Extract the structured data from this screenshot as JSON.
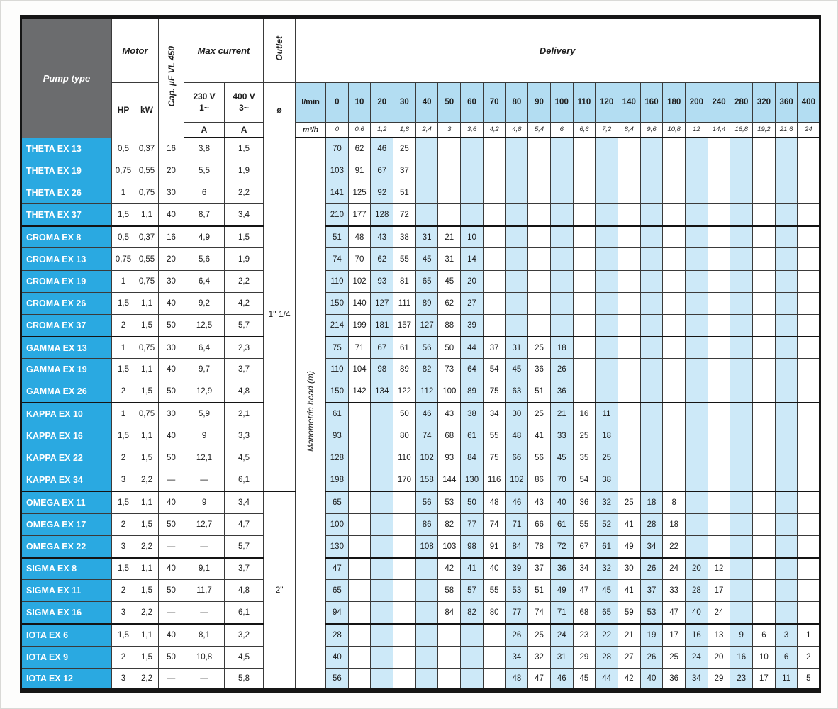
{
  "header": {
    "pump_type": "Pump type",
    "motor": "Motor",
    "hp": "HP",
    "kw": "kW",
    "cap": "Cap. µF VL 450",
    "max_current": "Max current",
    "v230": "230 V\n1~",
    "v400": "400 V\n3~",
    "amp": "A",
    "outlet": "Outlet",
    "diameter": "ø",
    "delivery": "Delivery",
    "lmin": "l/min",
    "m3h": "m³/h",
    "manometric": "Manometric head (m)",
    "lmin_values": [
      "0",
      "10",
      "20",
      "30",
      "40",
      "50",
      "60",
      "70",
      "80",
      "90",
      "100",
      "110",
      "120",
      "140",
      "160",
      "180",
      "200",
      "240",
      "280",
      "320",
      "360",
      "400"
    ],
    "m3h_values": [
      "0",
      "0,6",
      "1,2",
      "1,8",
      "2,4",
      "3",
      "3,6",
      "4,2",
      "4,8",
      "5,4",
      "6",
      "6,6",
      "7,2",
      "8,4",
      "9,6",
      "10,8",
      "12",
      "14,4",
      "16,8",
      "19,2",
      "21,6",
      "24"
    ]
  },
  "outlet_groups": [
    {
      "label": "1\" 1/4",
      "start": 0,
      "span": 16
    },
    {
      "label": "2\"",
      "start": 16,
      "span": 9
    }
  ],
  "rows": [
    {
      "name": "THETA EX 13",
      "hp": "0,5",
      "kw": "0,37",
      "cap": "16",
      "a230": "3,8",
      "a400": "1,5",
      "delivery": [
        "70",
        "62",
        "46",
        "25",
        "",
        "",
        "",
        "",
        "",
        "",
        "",
        "",
        "",
        "",
        "",
        "",
        "",
        "",
        "",
        "",
        "",
        ""
      ]
    },
    {
      "name": "THETA EX 19",
      "hp": "0,75",
      "kw": "0,55",
      "cap": "20",
      "a230": "5,5",
      "a400": "1,9",
      "delivery": [
        "103",
        "91",
        "67",
        "37",
        "",
        "",
        "",
        "",
        "",
        "",
        "",
        "",
        "",
        "",
        "",
        "",
        "",
        "",
        "",
        "",
        "",
        ""
      ]
    },
    {
      "name": "THETA EX 26",
      "hp": "1",
      "kw": "0,75",
      "cap": "30",
      "a230": "6",
      "a400": "2,2",
      "delivery": [
        "141",
        "125",
        "92",
        "51",
        "",
        "",
        "",
        "",
        "",
        "",
        "",
        "",
        "",
        "",
        "",
        "",
        "",
        "",
        "",
        "",
        "",
        ""
      ]
    },
    {
      "name": "THETA EX 37",
      "hp": "1,5",
      "kw": "1,1",
      "cap": "40",
      "a230": "8,7",
      "a400": "3,4",
      "delivery": [
        "210",
        "177",
        "128",
        "72",
        "",
        "",
        "",
        "",
        "",
        "",
        "",
        "",
        "",
        "",
        "",
        "",
        "",
        "",
        "",
        "",
        "",
        ""
      ]
    },
    {
      "name": "CROMA EX 8",
      "hp": "0,5",
      "kw": "0,37",
      "cap": "16",
      "a230": "4,9",
      "a400": "1,5",
      "group_start": true,
      "delivery": [
        "51",
        "48",
        "43",
        "38",
        "31",
        "21",
        "10",
        "",
        "",
        "",
        "",
        "",
        "",
        "",
        "",
        "",
        "",
        "",
        "",
        "",
        "",
        ""
      ]
    },
    {
      "name": "CROMA EX 13",
      "hp": "0,75",
      "kw": "0,55",
      "cap": "20",
      "a230": "5,6",
      "a400": "1,9",
      "delivery": [
        "74",
        "70",
        "62",
        "55",
        "45",
        "31",
        "14",
        "",
        "",
        "",
        "",
        "",
        "",
        "",
        "",
        "",
        "",
        "",
        "",
        "",
        "",
        ""
      ]
    },
    {
      "name": "CROMA EX 19",
      "hp": "1",
      "kw": "0,75",
      "cap": "30",
      "a230": "6,4",
      "a400": "2,2",
      "delivery": [
        "110",
        "102",
        "93",
        "81",
        "65",
        "45",
        "20",
        "",
        "",
        "",
        "",
        "",
        "",
        "",
        "",
        "",
        "",
        "",
        "",
        "",
        "",
        ""
      ]
    },
    {
      "name": "CROMA EX 26",
      "hp": "1,5",
      "kw": "1,1",
      "cap": "40",
      "a230": "9,2",
      "a400": "4,2",
      "delivery": [
        "150",
        "140",
        "127",
        "111",
        "89",
        "62",
        "27",
        "",
        "",
        "",
        "",
        "",
        "",
        "",
        "",
        "",
        "",
        "",
        "",
        "",
        "",
        ""
      ]
    },
    {
      "name": "CROMA EX 37",
      "hp": "2",
      "kw": "1,5",
      "cap": "50",
      "a230": "12,5",
      "a400": "5,7",
      "delivery": [
        "214",
        "199",
        "181",
        "157",
        "127",
        "88",
        "39",
        "",
        "",
        "",
        "",
        "",
        "",
        "",
        "",
        "",
        "",
        "",
        "",
        "",
        "",
        ""
      ]
    },
    {
      "name": "GAMMA EX 13",
      "hp": "1",
      "kw": "0,75",
      "cap": "30",
      "a230": "6,4",
      "a400": "2,3",
      "group_start": true,
      "delivery": [
        "75",
        "71",
        "67",
        "61",
        "56",
        "50",
        "44",
        "37",
        "31",
        "25",
        "18",
        "",
        "",
        "",
        "",
        "",
        "",
        "",
        "",
        "",
        "",
        ""
      ]
    },
    {
      "name": "GAMMA EX 19",
      "hp": "1,5",
      "kw": "1,1",
      "cap": "40",
      "a230": "9,7",
      "a400": "3,7",
      "delivery": [
        "110",
        "104",
        "98",
        "89",
        "82",
        "73",
        "64",
        "54",
        "45",
        "36",
        "26",
        "",
        "",
        "",
        "",
        "",
        "",
        "",
        "",
        "",
        "",
        ""
      ]
    },
    {
      "name": "GAMMA EX 26",
      "hp": "2",
      "kw": "1,5",
      "cap": "50",
      "a230": "12,9",
      "a400": "4,8",
      "delivery": [
        "150",
        "142",
        "134",
        "122",
        "112",
        "100",
        "89",
        "75",
        "63",
        "51",
        "36",
        "",
        "",
        "",
        "",
        "",
        "",
        "",
        "",
        "",
        "",
        ""
      ]
    },
    {
      "name": "KAPPA EX 10",
      "hp": "1",
      "kw": "0,75",
      "cap": "30",
      "a230": "5,9",
      "a400": "2,1",
      "group_start": true,
      "delivery": [
        "61",
        "",
        "",
        "50",
        "46",
        "43",
        "38",
        "34",
        "30",
        "25",
        "21",
        "16",
        "11",
        "",
        "",
        "",
        "",
        "",
        "",
        "",
        "",
        ""
      ]
    },
    {
      "name": "KAPPA EX 16",
      "hp": "1,5",
      "kw": "1,1",
      "cap": "40",
      "a230": "9",
      "a400": "3,3",
      "delivery": [
        "93",
        "",
        "",
        "80",
        "74",
        "68",
        "61",
        "55",
        "48",
        "41",
        "33",
        "25",
        "18",
        "",
        "",
        "",
        "",
        "",
        "",
        "",
        "",
        ""
      ]
    },
    {
      "name": "KAPPA EX 22",
      "hp": "2",
      "kw": "1,5",
      "cap": "50",
      "a230": "12,1",
      "a400": "4,5",
      "delivery": [
        "128",
        "",
        "",
        "110",
        "102",
        "93",
        "84",
        "75",
        "66",
        "56",
        "45",
        "35",
        "25",
        "",
        "",
        "",
        "",
        "",
        "",
        "",
        "",
        ""
      ]
    },
    {
      "name": "KAPPA EX 34",
      "hp": "3",
      "kw": "2,2",
      "cap": "—",
      "a230": "—",
      "a400": "6,1",
      "delivery": [
        "198",
        "",
        "",
        "170",
        "158",
        "144",
        "130",
        "116",
        "102",
        "86",
        "70",
        "54",
        "38",
        "",
        "",
        "",
        "",
        "",
        "",
        "",
        "",
        ""
      ]
    },
    {
      "name": "OMEGA EX 11",
      "hp": "1,5",
      "kw": "1,1",
      "cap": "40",
      "a230": "9",
      "a400": "3,4",
      "group_start": true,
      "delivery": [
        "65",
        "",
        "",
        "",
        "56",
        "53",
        "50",
        "48",
        "46",
        "43",
        "40",
        "36",
        "32",
        "25",
        "18",
        "8",
        "",
        "",
        "",
        "",
        "",
        ""
      ]
    },
    {
      "name": "OMEGA EX 17",
      "hp": "2",
      "kw": "1,5",
      "cap": "50",
      "a230": "12,7",
      "a400": "4,7",
      "delivery": [
        "100",
        "",
        "",
        "",
        "86",
        "82",
        "77",
        "74",
        "71",
        "66",
        "61",
        "55",
        "52",
        "41",
        "28",
        "18",
        "",
        "",
        "",
        "",
        "",
        ""
      ]
    },
    {
      "name": "OMEGA EX 22",
      "hp": "3",
      "kw": "2,2",
      "cap": "—",
      "a230": "—",
      "a400": "5,7",
      "delivery": [
        "130",
        "",
        "",
        "",
        "108",
        "103",
        "98",
        "91",
        "84",
        "78",
        "72",
        "67",
        "61",
        "49",
        "34",
        "22",
        "",
        "",
        "",
        "",
        "",
        ""
      ]
    },
    {
      "name": "SIGMA EX 8",
      "hp": "1,5",
      "kw": "1,1",
      "cap": "40",
      "a230": "9,1",
      "a400": "3,7",
      "group_start": true,
      "delivery": [
        "47",
        "",
        "",
        "",
        "",
        "42",
        "41",
        "40",
        "39",
        "37",
        "36",
        "34",
        "32",
        "30",
        "26",
        "24",
        "20",
        "12",
        "",
        "",
        "",
        ""
      ]
    },
    {
      "name": "SIGMA EX 11",
      "hp": "2",
      "kw": "1,5",
      "cap": "50",
      "a230": "11,7",
      "a400": "4,8",
      "delivery": [
        "65",
        "",
        "",
        "",
        "",
        "58",
        "57",
        "55",
        "53",
        "51",
        "49",
        "47",
        "45",
        "41",
        "37",
        "33",
        "28",
        "17",
        "",
        "",
        "",
        ""
      ]
    },
    {
      "name": "SIGMA EX 16",
      "hp": "3",
      "kw": "2,2",
      "cap": "—",
      "a230": "—",
      "a400": "6,1",
      "delivery": [
        "94",
        "",
        "",
        "",
        "",
        "84",
        "82",
        "80",
        "77",
        "74",
        "71",
        "68",
        "65",
        "59",
        "53",
        "47",
        "40",
        "24",
        "",
        "",
        "",
        ""
      ]
    },
    {
      "name": "IOTA EX 6",
      "hp": "1,5",
      "kw": "1,1",
      "cap": "40",
      "a230": "8,1",
      "a400": "3,2",
      "group_start": true,
      "delivery": [
        "28",
        "",
        "",
        "",
        "",
        "",
        "",
        "",
        "26",
        "25",
        "24",
        "23",
        "22",
        "21",
        "19",
        "17",
        "16",
        "13",
        "9",
        "6",
        "3",
        "1"
      ]
    },
    {
      "name": "IOTA EX 9",
      "hp": "2",
      "kw": "1,5",
      "cap": "50",
      "a230": "10,8",
      "a400": "4,5",
      "delivery": [
        "40",
        "",
        "",
        "",
        "",
        "",
        "",
        "",
        "34",
        "32",
        "31",
        "29",
        "28",
        "27",
        "26",
        "25",
        "24",
        "20",
        "16",
        "10",
        "6",
        "2"
      ]
    },
    {
      "name": "IOTA EX 12",
      "hp": "3",
      "kw": "2,2",
      "cap": "—",
      "a230": "—",
      "a400": "5,8",
      "delivery": [
        "56",
        "",
        "",
        "",
        "",
        "",
        "",
        "",
        "48",
        "47",
        "46",
        "45",
        "44",
        "42",
        "40",
        "36",
        "34",
        "29",
        "23",
        "17",
        "11",
        "5"
      ]
    }
  ]
}
